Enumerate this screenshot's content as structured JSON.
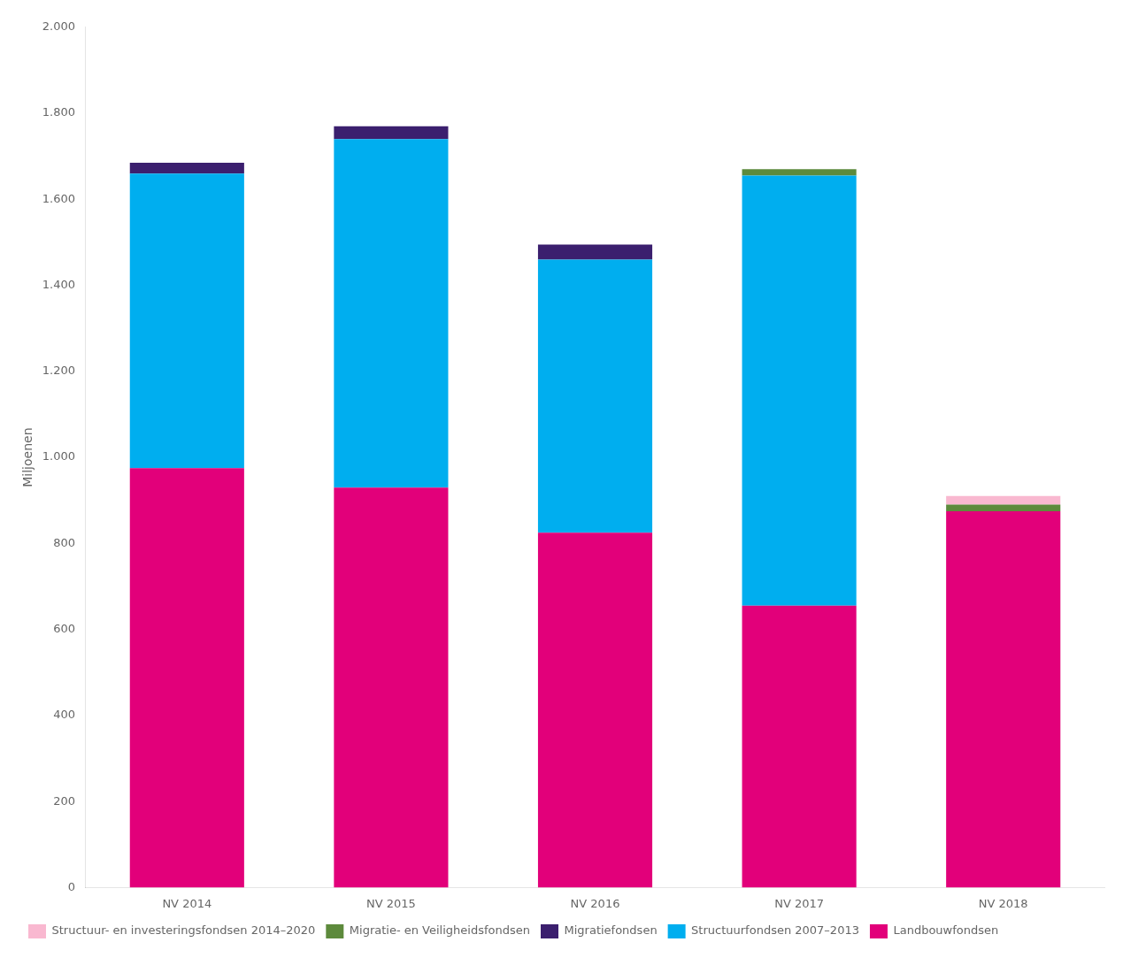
{
  "chart_data": {
    "type": "bar",
    "stacked": true,
    "categories": [
      "NV 2014",
      "NV 2015",
      "NV 2016",
      "NV 2017",
      "NV 2018"
    ],
    "series": [
      {
        "name": "Landbouwfondsen",
        "color": "#E2007A",
        "values": [
          975,
          930,
          825,
          655,
          875
        ]
      },
      {
        "name": "Structuurfondsen 2007–2013",
        "color": "#00AEEF",
        "values": [
          685,
          810,
          635,
          1000,
          0
        ]
      },
      {
        "name": "Migratiefondsen",
        "color": "#3B1F6E",
        "values": [
          25,
          30,
          35,
          0,
          0
        ]
      },
      {
        "name": "Migratie- en Veiligheidsfondsen",
        "color": "#5D8A3C",
        "values": [
          0,
          0,
          0,
          15,
          15
        ]
      },
      {
        "name": "Structuur- en investeringsfondsen 2014–2020",
        "color": "#F9B8D0",
        "values": [
          0,
          0,
          0,
          0,
          20
        ]
      }
    ],
    "ylabel": "Miljoenen",
    "ylim": [
      0,
      2000
    ],
    "yticks": [
      0,
      200,
      400,
      600,
      800,
      {
        "value": 1000,
        "label": "1.000"
      },
      {
        "value": 1200,
        "label": "1.200"
      },
      {
        "value": 1400,
        "label": "1.400"
      },
      {
        "value": 1600,
        "label": "1.600"
      },
      {
        "value": 1800,
        "label": "1.800"
      },
      {
        "value": 2000,
        "label": "2.000"
      }
    ],
    "grid": false,
    "legend": "bottom"
  }
}
